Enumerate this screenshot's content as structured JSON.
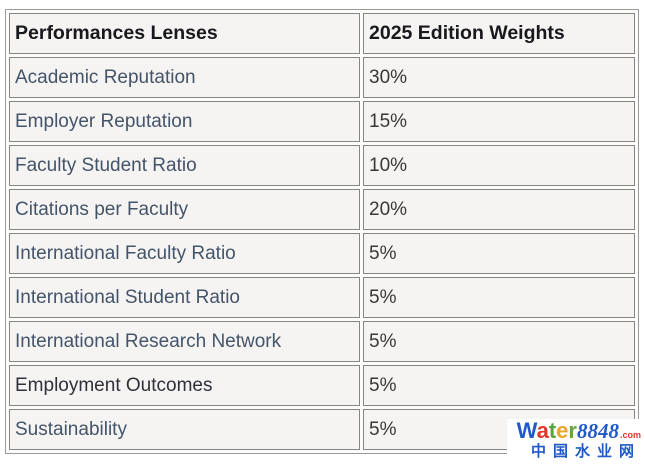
{
  "colors": {
    "link": "#44546a",
    "plain": "#30303a",
    "header_text": "#18181d",
    "value_text": "#3a3835",
    "cell_bg": "#f5f4f2",
    "cell_border": "#868686",
    "outer_border": "#9a9a9a"
  },
  "table": {
    "headers": [
      {
        "label": "Performances Lenses"
      },
      {
        "label": "2025 Edition Weights"
      }
    ],
    "rows": [
      {
        "lens": "Academic Reputation",
        "weight": "30%",
        "link": true
      },
      {
        "lens": "Employer Reputation",
        "weight": "15%",
        "link": true
      },
      {
        "lens": "Faculty Student Ratio",
        "weight": "10%",
        "link": true
      },
      {
        "lens": "Citations per Faculty",
        "weight": "20%",
        "link": true
      },
      {
        "lens": "International Faculty Ratio",
        "weight": "5%",
        "link": true
      },
      {
        "lens": "International Student Ratio",
        "weight": "5%",
        "link": true
      },
      {
        "lens": "International Research Network",
        "weight": "5%",
        "link": true
      },
      {
        "lens": "Employment Outcomes",
        "weight": "5%",
        "link": false
      },
      {
        "lens": "Sustainability",
        "weight": "5%",
        "link": true
      }
    ]
  },
  "chart_data": {
    "type": "table",
    "title": "2025 Edition Weights",
    "categories": [
      "Academic Reputation",
      "Employer Reputation",
      "Faculty Student Ratio",
      "Citations per Faculty",
      "International Faculty Ratio",
      "International Student Ratio",
      "International Research Network",
      "Employment Outcomes",
      "Sustainability"
    ],
    "values": [
      30,
      15,
      10,
      20,
      5,
      5,
      5,
      5,
      5
    ]
  },
  "watermark": {
    "brand_letters": [
      {
        "ch": "W",
        "color": "#1f5ac8"
      },
      {
        "ch": "a",
        "color": "#e2362b"
      },
      {
        "ch": "t",
        "color": "#58a33b"
      },
      {
        "ch": "e",
        "color": "#f0a32a"
      },
      {
        "ch": "r",
        "color": "#6aa23c"
      }
    ],
    "brand_number": "8848",
    "brand_tld": ".com",
    "subtitle": "中国水业网"
  }
}
